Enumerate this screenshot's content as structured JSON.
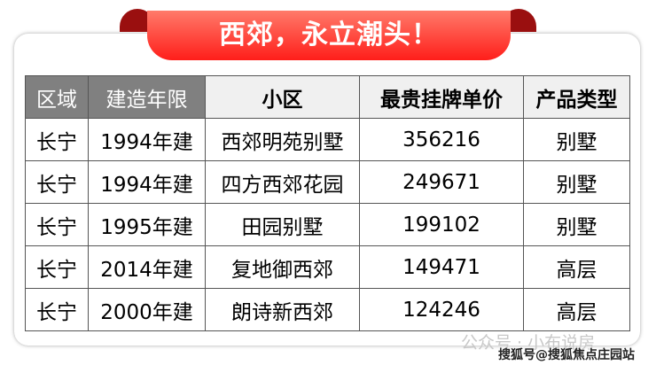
{
  "title": "西郊，永立潮头！",
  "headers": [
    "区域",
    "建造年限",
    "小区",
    "最贵挂牌单价",
    "产品类型"
  ],
  "rows": [
    [
      "长宁",
      "1994年建",
      "西郊明苑别墅",
      "356216",
      "别墅"
    ],
    [
      "长宁",
      "1994年建",
      "四方西郊花园",
      "249671",
      "别墅"
    ],
    [
      "长宁",
      "1995年建",
      "田园别墅",
      "199102",
      "别墅"
    ],
    [
      "长宁",
      "2014年建",
      "复地御西郊",
      "149471",
      "高层"
    ],
    [
      "长宁",
      "2000年建",
      "朗诗新西郊",
      "124246",
      "高层"
    ]
  ],
  "watermark": {
    "wechat": "公众号 · 小布说房",
    "sohu": "搜狐号@搜狐焦点庄园站"
  },
  "colors": {
    "banner": "#ff2a1f",
    "header_gray": "#808080"
  }
}
